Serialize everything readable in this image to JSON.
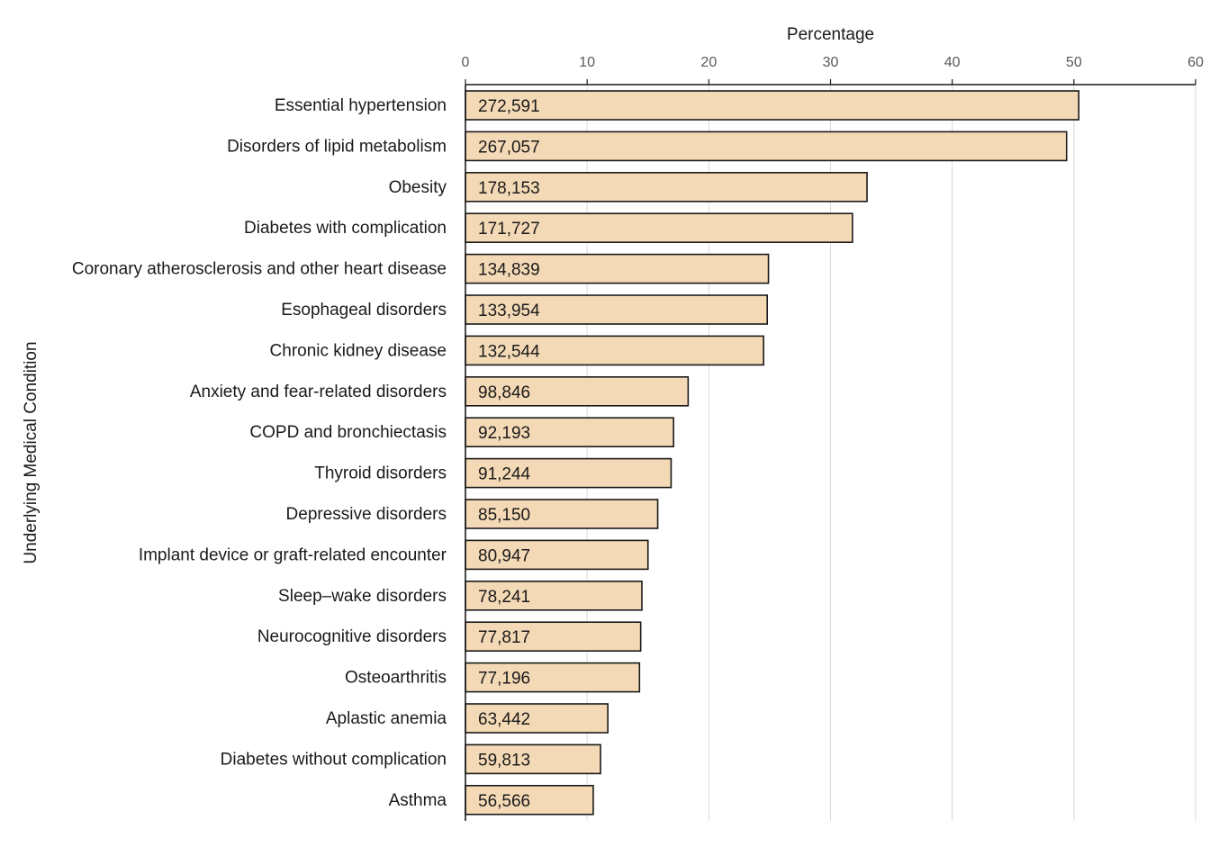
{
  "chart_data": {
    "type": "bar",
    "orientation": "horizontal",
    "xlabel": "Percentage",
    "ylabel": "Underlying Medical Condition",
    "xlim": [
      0,
      60
    ],
    "xticks": [
      0,
      10,
      20,
      30,
      40,
      50,
      60
    ],
    "x_axis_position": "top",
    "grid": true,
    "categories": [
      "Essential hypertension",
      "Disorders of lipid metabolism",
      "Obesity",
      "Diabetes with complication",
      "Coronary atherosclerosis and other heart disease",
      "Esophageal disorders",
      "Chronic kidney disease",
      "Anxiety and fear-related disorders",
      "COPD and bronchiectasis",
      "Thyroid disorders",
      "Depressive disorders",
      "Implant device or graft-related encounter",
      "Sleep–wake disorders",
      "Neurocognitive disorders",
      "Osteoarthritis",
      "Aplastic anemia",
      "Diabetes without complication",
      "Asthma"
    ],
    "values": [
      50.4,
      49.4,
      33.0,
      31.8,
      24.9,
      24.8,
      24.5,
      18.3,
      17.1,
      16.9,
      15.8,
      15.0,
      14.5,
      14.4,
      14.3,
      11.7,
      11.1,
      10.5
    ],
    "data_labels": [
      "272,591",
      "267,057",
      "178,153",
      "171,727",
      "134,839",
      "133,954",
      "132,544",
      "98,846",
      "92,193",
      "91,244",
      "85,150",
      "80,947",
      "78,241",
      "77,817",
      "77,196",
      "63,442",
      "59,813",
      "56,566"
    ],
    "colors": {
      "bar_fill": "#f4d9b6",
      "bar_stroke": "#1a1a1a",
      "grid": "#d9d9d9",
      "axis": "#1a1a1a"
    }
  }
}
